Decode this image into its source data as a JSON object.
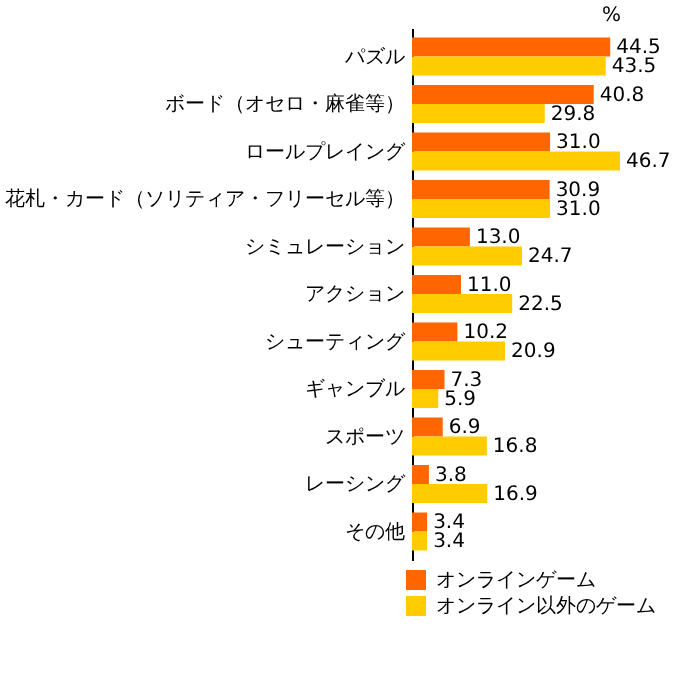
{
  "chart_data": {
    "type": "bar",
    "orientation": "horizontal",
    "xlabel": "%",
    "categories": [
      "パズル",
      "ボード（オセロ・麻雀等）",
      "ロールプレイング",
      "花札・カード（ソリティア・フリーセル等）",
      "シミュレーション",
      "アクション",
      "シューティング",
      "ギャンブル",
      "スポーツ",
      "レーシング",
      "その他"
    ],
    "series": [
      {
        "name": "オンラインゲーム",
        "color": "#ff6600",
        "values": [
          44.5,
          40.8,
          31.0,
          30.9,
          13.0,
          11.0,
          10.2,
          7.3,
          6.9,
          3.8,
          3.4
        ],
        "value_labels": [
          "44.5",
          "40.8",
          "31.0",
          "30.9",
          "13.0",
          "11.0",
          "10.2",
          "7.3",
          "6.9",
          "3.8",
          "3.4"
        ]
      },
      {
        "name": "オンライン以外のゲーム",
        "color": "#ffcc00",
        "values": [
          43.5,
          29.8,
          46.7,
          31.0,
          24.7,
          22.5,
          20.9,
          5.9,
          16.8,
          16.9,
          3.4
        ],
        "value_labels": [
          "43.5",
          "29.8",
          "46.7",
          "31.0",
          "24.7",
          "22.5",
          "20.9",
          "5.9",
          "16.8",
          "16.9",
          "3.4"
        ]
      }
    ],
    "grid": false,
    "legend": "bottom right"
  }
}
